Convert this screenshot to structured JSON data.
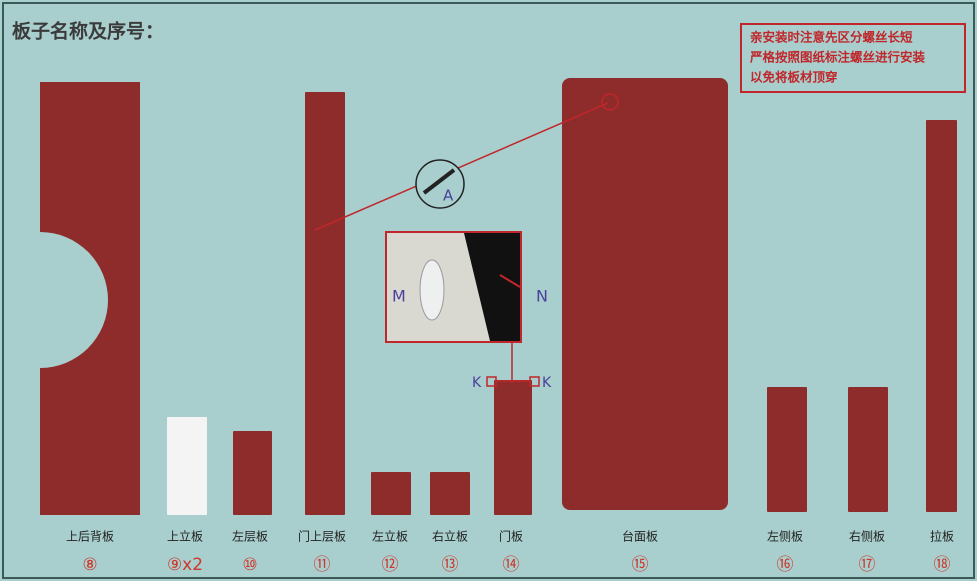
{
  "header": {
    "title": "板子名称及序号："
  },
  "notice": {
    "lines": [
      "亲安装时注意先区分螺丝长短",
      "严格按照图纸标注螺丝进行安装",
      "以免将板材顶穿"
    ]
  },
  "panels": [
    {
      "label": "上后背板",
      "number": "⑧"
    },
    {
      "label": "上立板",
      "number": "⑨x2"
    },
    {
      "label": "左层板",
      "number": "⑩"
    },
    {
      "label": "门上层板",
      "number": "⑪"
    },
    {
      "label": "左立板",
      "number": "⑫"
    },
    {
      "label": "右立板",
      "number": "⑬"
    },
    {
      "label": "门板",
      "number": "⑭"
    },
    {
      "label": "台面板",
      "number": "⑮"
    },
    {
      "label": "左侧板",
      "number": "⑯"
    },
    {
      "label": "右侧板",
      "number": "⑰"
    },
    {
      "label": "拉板",
      "number": "⑱"
    }
  ],
  "callouts": {
    "a": "A",
    "m": "M",
    "n": "N",
    "k_left": "K",
    "k_right": "K"
  }
}
